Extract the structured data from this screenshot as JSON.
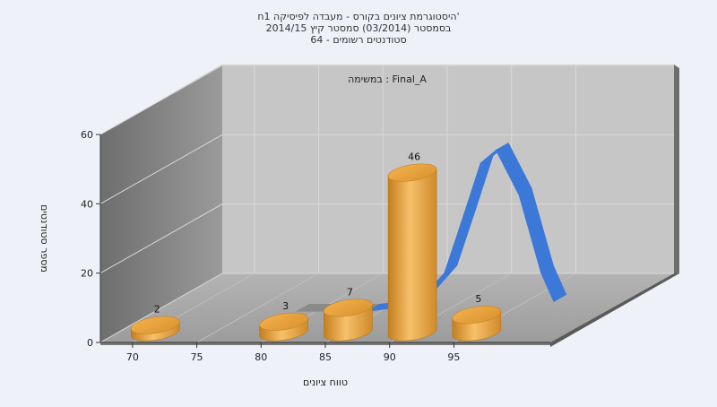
{
  "chart_data": {
    "type": "bar",
    "title_lines": [
      "היסטוגרמת ציונים בקורס - מעבדה לפיסיקה 1ח'",
      "בסמסטר  (03/2014)  סמסטר קיץ 2014/15",
      "סטודנטים רשומים - 64"
    ],
    "subtitle": "במשימה : Final_A",
    "xlabel": "טווח ציונים",
    "ylabel": "מספר סטודנטים",
    "x_ticks": [
      "70",
      "75",
      "80",
      "85",
      "90",
      "95"
    ],
    "y_ticks": [
      "0",
      "20",
      "40",
      "60"
    ],
    "ylim": [
      0,
      60
    ],
    "xlim": [
      67.5,
      102.5
    ],
    "bars": [
      {
        "x": 70,
        "value": 2,
        "label": "2"
      },
      {
        "x": 80,
        "value": 3,
        "label": "3"
      },
      {
        "x": 85,
        "value": 7,
        "label": "7"
      },
      {
        "x": 90,
        "value": 46,
        "label": "46"
      },
      {
        "x": 95,
        "value": 5,
        "label": "5"
      }
    ],
    "curve": {
      "type": "normal-distribution-ribbon",
      "values": [
        {
          "x": 78.5,
          "y": 0
        },
        {
          "x": 84,
          "y": 0
        },
        {
          "x": 86,
          "y": 1
        },
        {
          "x": 88,
          "y": 3
        },
        {
          "x": 90,
          "y": 12
        },
        {
          "x": 91.5,
          "y": 30
        },
        {
          "x": 92.8,
          "y": 46
        },
        {
          "x": 94,
          "y": 50
        },
        {
          "x": 95.8,
          "y": 36
        },
        {
          "x": 97.5,
          "y": 12
        },
        {
          "x": 98.5,
          "y": 3
        }
      ]
    },
    "grid": true,
    "colors": {
      "bar": "#e9a23b",
      "curve": "#3c78d8",
      "curve_flat": "#8a8a8a",
      "wall_back": "#c8c8c8",
      "wall_side": "#8c8c8c",
      "floor": "#a9a9a9"
    }
  }
}
